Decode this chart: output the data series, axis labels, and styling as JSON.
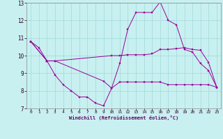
{
  "xlabel": "Windchill (Refroidissement éolien,°C)",
  "background_color": "#c8f0f0",
  "grid_color": "#a0d8d8",
  "line_color": "#990099",
  "xlim": [
    -0.5,
    23.5
  ],
  "ylim": [
    7,
    13
  ],
  "xticks": [
    0,
    1,
    2,
    3,
    4,
    5,
    6,
    7,
    8,
    9,
    10,
    11,
    12,
    13,
    14,
    15,
    16,
    17,
    18,
    19,
    20,
    21,
    22,
    23
  ],
  "yticks": [
    7,
    8,
    9,
    10,
    11,
    12,
    13
  ],
  "line1_x": [
    0,
    1,
    2,
    3,
    4,
    5,
    6,
    7,
    8,
    9,
    10,
    11,
    12,
    13,
    14,
    15,
    16,
    17,
    18,
    19,
    20,
    21,
    22,
    23
  ],
  "line1_y": [
    10.8,
    10.45,
    9.7,
    8.9,
    8.35,
    8.0,
    7.65,
    7.65,
    7.3,
    7.15,
    8.15,
    9.55,
    11.5,
    12.45,
    12.45,
    12.45,
    13.05,
    12.0,
    11.75,
    10.35,
    10.2,
    9.55,
    9.15,
    8.2
  ],
  "line2_x": [
    0,
    2,
    3,
    10,
    11,
    12,
    13,
    14,
    15,
    16,
    17,
    18,
    19,
    20,
    21,
    22,
    23
  ],
  "line2_y": [
    10.8,
    9.7,
    9.7,
    10.0,
    10.0,
    10.05,
    10.05,
    10.05,
    10.1,
    10.35,
    10.35,
    10.4,
    10.45,
    10.35,
    10.3,
    9.6,
    8.2
  ],
  "line3_x": [
    0,
    2,
    3,
    9,
    10,
    11,
    12,
    13,
    14,
    15,
    16,
    17,
    18,
    19,
    20,
    21,
    22,
    23
  ],
  "line3_y": [
    10.8,
    9.7,
    9.7,
    8.55,
    8.15,
    8.5,
    8.5,
    8.5,
    8.5,
    8.5,
    8.5,
    8.35,
    8.35,
    8.35,
    8.35,
    8.35,
    8.35,
    8.2
  ]
}
